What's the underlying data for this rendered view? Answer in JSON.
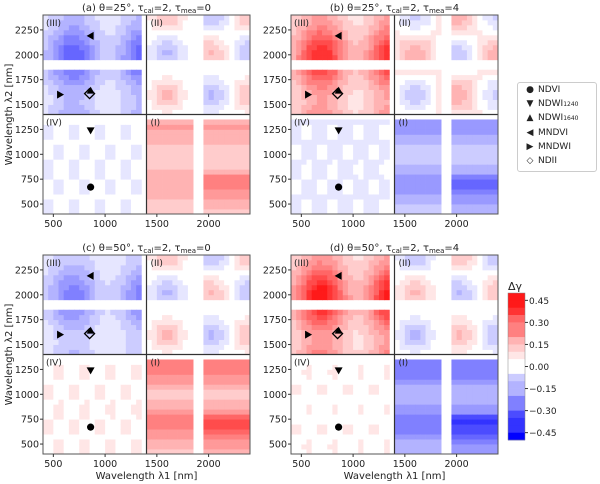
{
  "chart_data": [
    {
      "type": "heatmap",
      "panel": "a",
      "title": {
        "pre": "(a) θ=25°, τ",
        "sub1": "cal",
        "mid": "=2, τ",
        "sub2": "mea",
        "post": "=0"
      },
      "theta_deg": 25,
      "tau_cal": 2,
      "tau_mea": 0,
      "xlabel": "",
      "ylabel": "Wavelength λ2 [nm]",
      "quadrant_levels": {
        "III": -0.15,
        "II": 0.0,
        "IV": -0.02,
        "I": 0.13
      }
    },
    {
      "type": "heatmap",
      "panel": "b",
      "title": {
        "pre": "(b) θ=25°, τ",
        "sub1": "cal",
        "mid": "=2, τ",
        "sub2": "mea",
        "post": "=4"
      },
      "theta_deg": 25,
      "tau_cal": 2,
      "tau_mea": 4,
      "xlabel": "",
      "ylabel": "",
      "quadrant_levels": {
        "III": 0.2,
        "II": 0.03,
        "IV": -0.03,
        "I": -0.15
      }
    },
    {
      "type": "heatmap",
      "panel": "c",
      "title": {
        "pre": "(c) θ=50°, τ",
        "sub1": "cal",
        "mid": "=2, τ",
        "sub2": "mea",
        "post": "=0"
      },
      "theta_deg": 50,
      "tau_cal": 2,
      "tau_mea": 0,
      "xlabel": "Wavelength λ1 [nm]",
      "ylabel": "Wavelength λ2 [nm]",
      "quadrant_levels": {
        "III": -0.12,
        "II": 0.0,
        "IV": 0.02,
        "I": 0.18
      }
    },
    {
      "type": "heatmap",
      "panel": "d",
      "title": {
        "pre": "(d) θ=50°, τ",
        "sub1": "cal",
        "mid": "=2, τ",
        "sub2": "mea",
        "post": "=4"
      },
      "theta_deg": 50,
      "tau_cal": 2,
      "tau_mea": 4,
      "xlabel": "Wavelength λ1 [nm]",
      "ylabel": "",
      "quadrant_levels": {
        "III": 0.22,
        "II": 0.0,
        "IV": 0.01,
        "I": -0.2
      }
    }
  ],
  "axes": {
    "xlim": [
      400,
      2400
    ],
    "ylim": [
      400,
      2400
    ],
    "xticks": [
      "500",
      "1000",
      "1500",
      "2000"
    ],
    "yticks": [
      "500",
      "750",
      "1000",
      "1250",
      "1500",
      "1750",
      "2000",
      "2250"
    ],
    "quadrant_labels": [
      "(I)",
      "(II)",
      "(III)",
      "(IV)"
    ],
    "masked_bands_nm": [
      [
        1370,
        1400
      ],
      [
        1830,
        1930
      ]
    ],
    "divider_nm": 1400
  },
  "markers": [
    {
      "name": "NDVI",
      "label": "NDVI",
      "sub": "",
      "symbol": "circle",
      "l1": 860,
      "l2": 670
    },
    {
      "name": "NDWI1240",
      "label": "NDWI",
      "sub": "1240",
      "symbol": "triangle-down",
      "l1": 860,
      "l2": 1240
    },
    {
      "name": "NDWI1640",
      "label": "NDWI",
      "sub": "1640",
      "symbol": "triangle-up",
      "l1": 860,
      "l2": 1640
    },
    {
      "name": "MNDVI",
      "label": "MNDVI",
      "sub": "",
      "symbol": "triangle-left",
      "l1": 860,
      "l2": 2190
    },
    {
      "name": "MNDWI",
      "label": "MNDWI",
      "sub": "",
      "symbol": "triangle-right",
      "l1": 565,
      "l2": 1600
    },
    {
      "name": "NDII",
      "label": "NDII",
      "sub": "",
      "symbol": "diamond",
      "l1": 850,
      "l2": 1610
    }
  ],
  "colorbar": {
    "label": "Δγ",
    "range": [
      -0.5,
      0.5
    ],
    "ticks": [
      "0.45",
      "0.30",
      "0.15",
      "0.00",
      "−0.15",
      "−0.30",
      "−0.45"
    ],
    "tick_values": [
      0.45,
      0.3,
      0.15,
      0,
      -0.15,
      -0.3,
      -0.45
    ],
    "colormap": "bwr",
    "low_color": "#0000ff",
    "mid_color": "#ffffff",
    "high_color": "#ff0000"
  }
}
